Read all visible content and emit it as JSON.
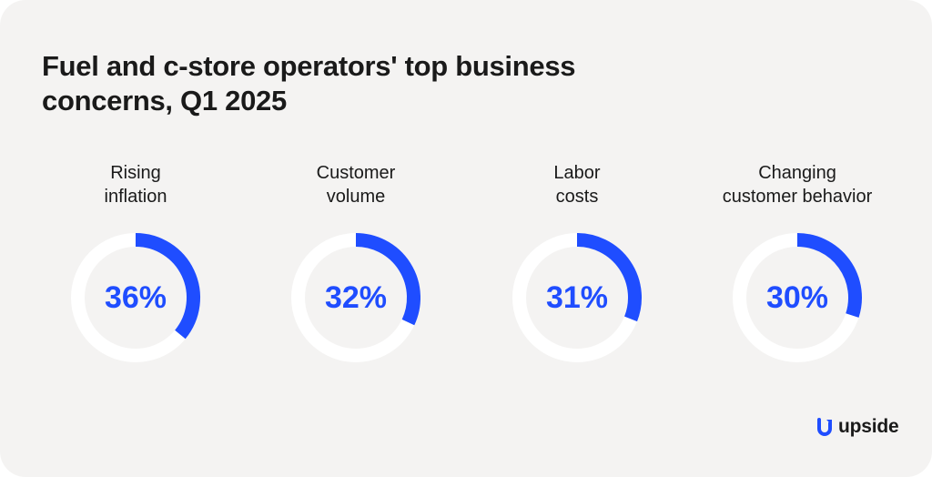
{
  "chart_data": {
    "type": "donut",
    "title": "Fuel and c-store operators' top business concerns, Q1 2025",
    "unit": "%",
    "colors": {
      "filled": "#1f4dff",
      "track": "#ffffff",
      "background": "#f4f3f2"
    },
    "items": [
      {
        "label_lines": [
          "Rising",
          "inflation"
        ],
        "value": 36,
        "value_label": "36%"
      },
      {
        "label_lines": [
          "Customer",
          "volume"
        ],
        "value": 32,
        "value_label": "32%"
      },
      {
        "label_lines": [
          "Labor",
          "costs"
        ],
        "value": 31,
        "value_label": "31%"
      },
      {
        "label_lines": [
          "Changing",
          "customer behavior"
        ],
        "value": 30,
        "value_label": "30%"
      }
    ]
  },
  "brand": {
    "name": "upside",
    "icon": "upside-logo-icon",
    "color": "#1f4dff"
  }
}
